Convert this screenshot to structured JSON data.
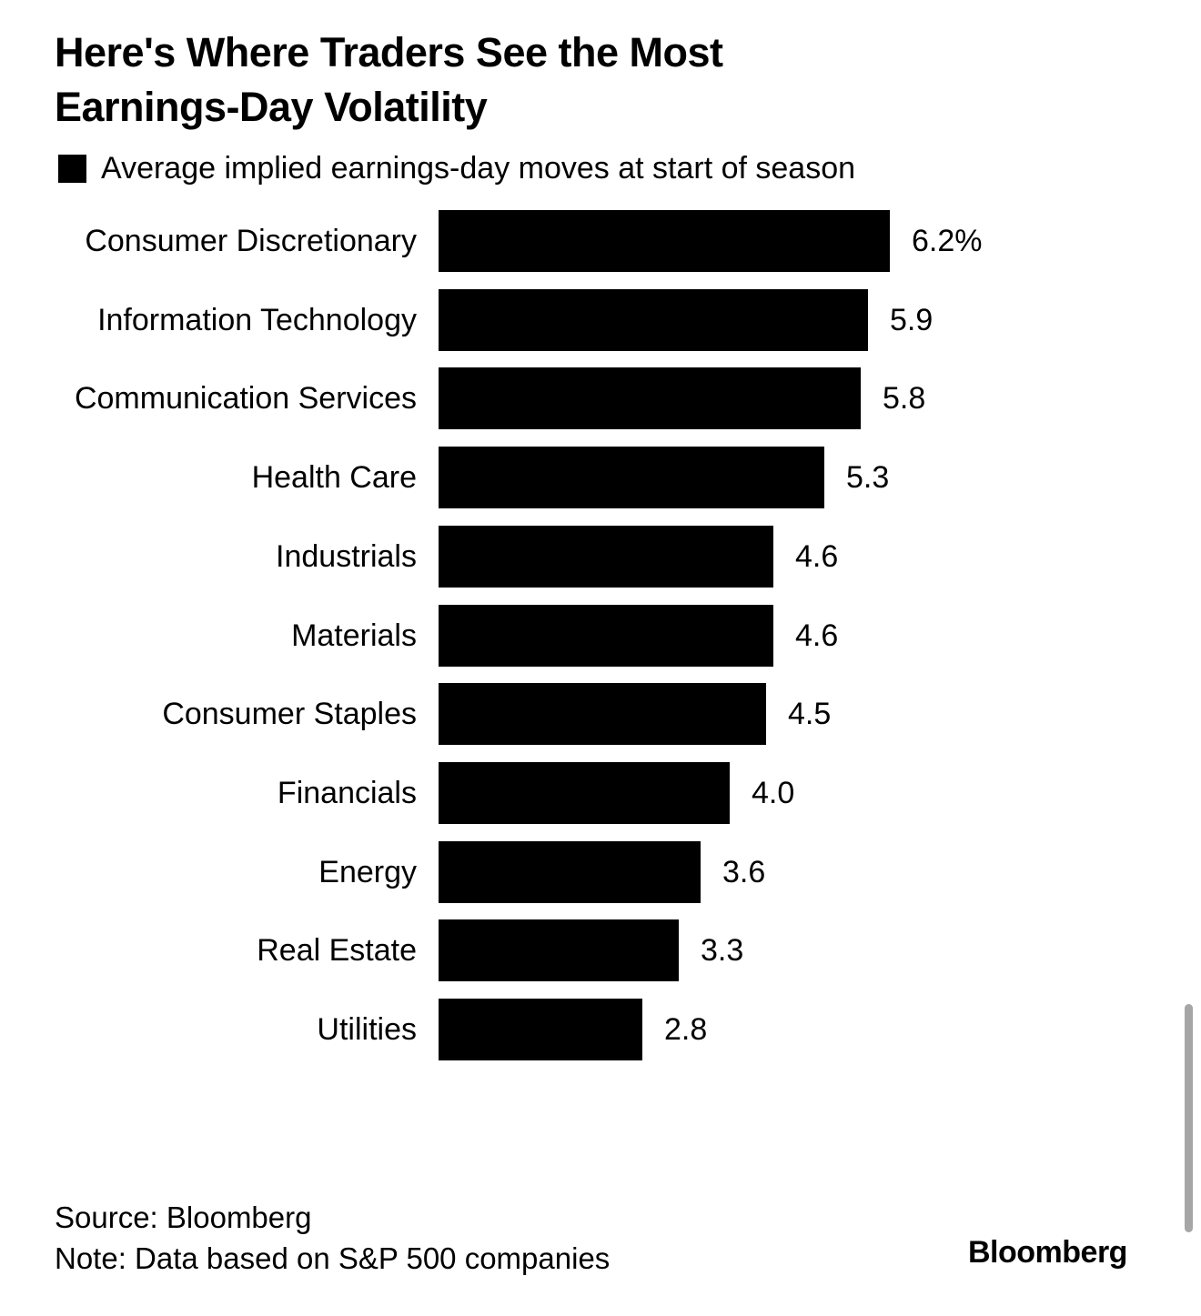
{
  "chart_data": {
    "type": "bar",
    "orientation": "horizontal",
    "title": "Here's Where Traders See the Most Earnings-Day Volatility",
    "legend": [
      "Average implied earnings-day moves at start of season"
    ],
    "categories": [
      "Consumer Discretionary",
      "Information Technology",
      "Communication Services",
      "Health Care",
      "Industrials",
      "Materials",
      "Consumer Staples",
      "Financials",
      "Energy",
      "Real Estate",
      "Utilities"
    ],
    "values": [
      6.2,
      5.9,
      5.8,
      5.3,
      4.6,
      4.6,
      4.5,
      4.0,
      3.6,
      3.3,
      2.8
    ],
    "value_labels": [
      "6.2%",
      "5.9",
      "5.8",
      "5.3",
      "4.6",
      "4.6",
      "4.5",
      "4.0",
      "3.6",
      "3.3",
      "2.8"
    ],
    "xlabel": "",
    "ylabel": "",
    "xlim": [
      0,
      7
    ],
    "grid": false,
    "color": "#000000"
  },
  "title_line1": "Here's Where Traders See the Most",
  "title_line2": "Earnings-Day Volatility",
  "legend_label": "Average implied earnings-day moves at start of season",
  "source": "Source: Bloomberg",
  "note": "Note: Data based on S&P 500 companies",
  "logo": "Bloomberg"
}
